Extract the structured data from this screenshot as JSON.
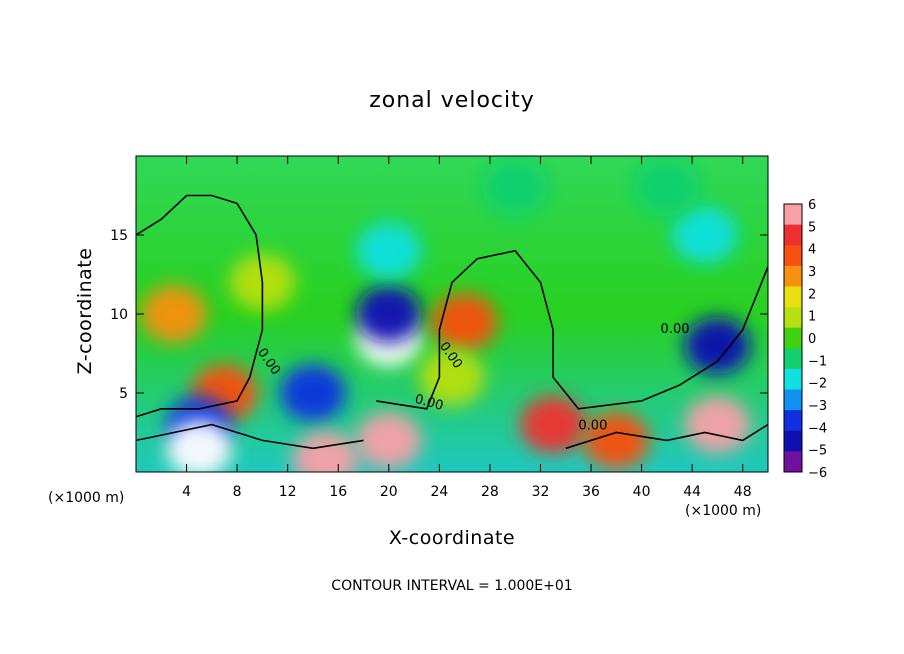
{
  "chart_data": {
    "type": "heatmap",
    "title": "zonal velocity",
    "xlabel": "X-coordinate",
    "ylabel": "Z-coordinate",
    "x_unit_label": "(×1000 m)",
    "xlim": [
      0,
      50
    ],
    "ylim": [
      0,
      20
    ],
    "x_ticks": [
      4,
      8,
      12,
      16,
      20,
      24,
      28,
      32,
      36,
      40,
      44,
      48
    ],
    "y_ticks": [
      5,
      10,
      15
    ],
    "colorbar": {
      "ticks": [
        6,
        5,
        4,
        3,
        2,
        1,
        0,
        -1,
        -2,
        -3,
        -4,
        -5,
        -6
      ],
      "tick_labels": [
        "6",
        "5",
        "4",
        "3",
        "2",
        "1",
        "0",
        "−1",
        "−2",
        "−3",
        "−4",
        "−5",
        "−6"
      ],
      "colors": [
        "#f8a0a8",
        "#f03030",
        "#f85010",
        "#f89010",
        "#e8e010",
        "#b8e010",
        "#40d010",
        "#10d070",
        "#10e0e0",
        "#1090f0",
        "#1030e0",
        "#1010b0",
        "#7010a0"
      ]
    },
    "contour_labels": [
      "0.00",
      "0.00",
      "0.00",
      "0.00",
      "0.00"
    ],
    "footer": "CONTOUR INTERVAL = 1.000E+01",
    "regions": [
      {
        "x": 3,
        "y": 10,
        "value": 3.5
      },
      {
        "x": 7,
        "y": 5,
        "value": 4
      },
      {
        "x": 5,
        "y": 3,
        "value": -4
      },
      {
        "x": 5,
        "y": 1.5,
        "value": -7
      },
      {
        "x": 20,
        "y": 8.5,
        "value": -7
      },
      {
        "x": 20,
        "y": 10,
        "value": -5
      },
      {
        "x": 14,
        "y": 5,
        "value": -4
      },
      {
        "x": 20,
        "y": 2,
        "value": 6
      },
      {
        "x": 15,
        "y": 0.8,
        "value": 6
      },
      {
        "x": 26,
        "y": 9.5,
        "value": 4
      },
      {
        "x": 25,
        "y": 6,
        "value": 1
      },
      {
        "x": 33,
        "y": 3,
        "value": 5
      },
      {
        "x": 38,
        "y": 2,
        "value": 4
      },
      {
        "x": 46,
        "y": 8,
        "value": -5
      },
      {
        "x": 46,
        "y": 3,
        "value": 6
      },
      {
        "x": 45,
        "y": 15,
        "value": -2
      },
      {
        "x": 20,
        "y": 14,
        "value": -1.5
      },
      {
        "x": 10,
        "y": 12,
        "value": 1
      },
      {
        "x": 30,
        "y": 18,
        "value": -0.5
      },
      {
        "x": 42,
        "y": 18,
        "value": -1
      }
    ]
  }
}
